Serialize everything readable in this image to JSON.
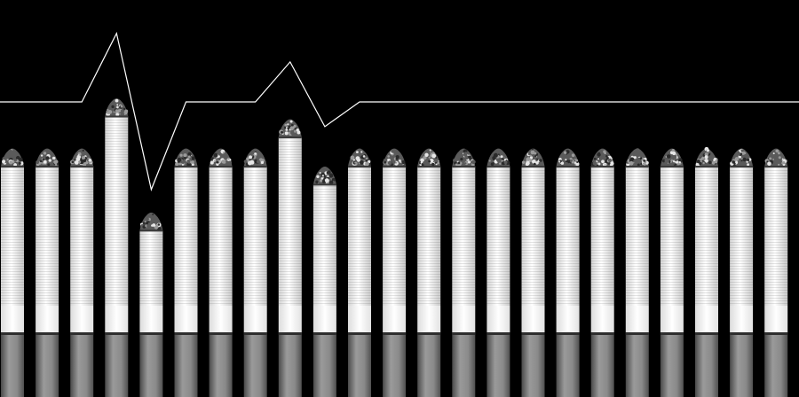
{
  "scene": {
    "background": "#000000",
    "line_color": "#ffffff",
    "ash_colors": [
      "#e6e6e6",
      "#9a9a9a",
      "#5a5a5a",
      "#2a2a2a"
    ],
    "paper_colors": [
      "#d4d4d4",
      "#ffffff",
      "#c8c8c8"
    ],
    "band_colors": [
      "#dcdcdc",
      "#ffffff",
      "#e2e2e2"
    ],
    "filter_colors": [
      "#4a4a4a",
      "#9a9a9a",
      "#8a8a8a",
      "#505050"
    ]
  },
  "cigarettes": {
    "count": 23,
    "relative_heights": [
      1,
      1,
      1,
      1.36,
      0.54,
      1,
      1,
      1,
      1.21,
      0.87,
      1,
      1,
      1,
      1,
      1,
      1,
      1,
      1,
      1,
      1,
      1,
      1,
      1
    ]
  },
  "trend_line": {
    "relative_levels": [
      1,
      1,
      1,
      1.36,
      0.54,
      1,
      1,
      1,
      1.21,
      0.87,
      1,
      1,
      1,
      1,
      1,
      1,
      1,
      1,
      1,
      1,
      1,
      1,
      1
    ]
  }
}
